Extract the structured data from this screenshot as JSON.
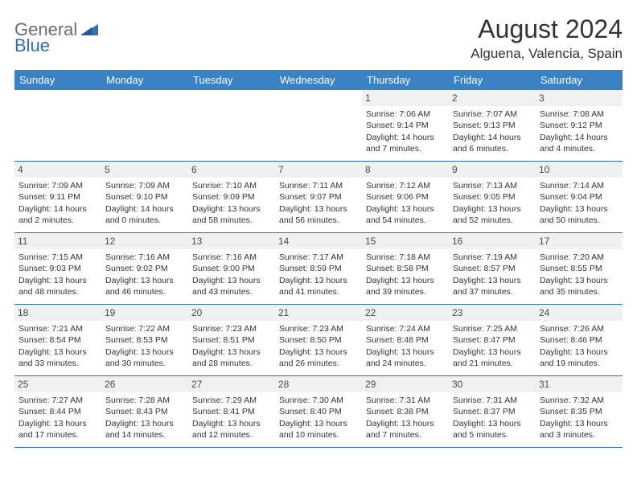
{
  "brand": {
    "part1": "General",
    "part2": "Blue"
  },
  "title": "August 2024",
  "location": "Alguena, Valencia, Spain",
  "colors": {
    "header_bg": "#3b82c4",
    "header_text": "#ffffff",
    "rule": "#2f6fb3",
    "daynum_bg": "#eef0f2",
    "text": "#333333",
    "logo_gray": "#6b6b6b",
    "logo_blue": "#2f6fb3"
  },
  "day_labels": [
    "Sunday",
    "Monday",
    "Tuesday",
    "Wednesday",
    "Thursday",
    "Friday",
    "Saturday"
  ],
  "weeks": [
    [
      {
        "n": "",
        "sr": "",
        "ss": "",
        "dl": ""
      },
      {
        "n": "",
        "sr": "",
        "ss": "",
        "dl": ""
      },
      {
        "n": "",
        "sr": "",
        "ss": "",
        "dl": ""
      },
      {
        "n": "",
        "sr": "",
        "ss": "",
        "dl": ""
      },
      {
        "n": "1",
        "sr": "7:06 AM",
        "ss": "9:14 PM",
        "dl": "14 hours and 7 minutes."
      },
      {
        "n": "2",
        "sr": "7:07 AM",
        "ss": "9:13 PM",
        "dl": "14 hours and 6 minutes."
      },
      {
        "n": "3",
        "sr": "7:08 AM",
        "ss": "9:12 PM",
        "dl": "14 hours and 4 minutes."
      }
    ],
    [
      {
        "n": "4",
        "sr": "7:09 AM",
        "ss": "9:11 PM",
        "dl": "14 hours and 2 minutes."
      },
      {
        "n": "5",
        "sr": "7:09 AM",
        "ss": "9:10 PM",
        "dl": "14 hours and 0 minutes."
      },
      {
        "n": "6",
        "sr": "7:10 AM",
        "ss": "9:09 PM",
        "dl": "13 hours and 58 minutes."
      },
      {
        "n": "7",
        "sr": "7:11 AM",
        "ss": "9:07 PM",
        "dl": "13 hours and 56 minutes."
      },
      {
        "n": "8",
        "sr": "7:12 AM",
        "ss": "9:06 PM",
        "dl": "13 hours and 54 minutes."
      },
      {
        "n": "9",
        "sr": "7:13 AM",
        "ss": "9:05 PM",
        "dl": "13 hours and 52 minutes."
      },
      {
        "n": "10",
        "sr": "7:14 AM",
        "ss": "9:04 PM",
        "dl": "13 hours and 50 minutes."
      }
    ],
    [
      {
        "n": "11",
        "sr": "7:15 AM",
        "ss": "9:03 PM",
        "dl": "13 hours and 48 minutes."
      },
      {
        "n": "12",
        "sr": "7:16 AM",
        "ss": "9:02 PM",
        "dl": "13 hours and 46 minutes."
      },
      {
        "n": "13",
        "sr": "7:16 AM",
        "ss": "9:00 PM",
        "dl": "13 hours and 43 minutes."
      },
      {
        "n": "14",
        "sr": "7:17 AM",
        "ss": "8:59 PM",
        "dl": "13 hours and 41 minutes."
      },
      {
        "n": "15",
        "sr": "7:18 AM",
        "ss": "8:58 PM",
        "dl": "13 hours and 39 minutes."
      },
      {
        "n": "16",
        "sr": "7:19 AM",
        "ss": "8:57 PM",
        "dl": "13 hours and 37 minutes."
      },
      {
        "n": "17",
        "sr": "7:20 AM",
        "ss": "8:55 PM",
        "dl": "13 hours and 35 minutes."
      }
    ],
    [
      {
        "n": "18",
        "sr": "7:21 AM",
        "ss": "8:54 PM",
        "dl": "13 hours and 33 minutes."
      },
      {
        "n": "19",
        "sr": "7:22 AM",
        "ss": "8:53 PM",
        "dl": "13 hours and 30 minutes."
      },
      {
        "n": "20",
        "sr": "7:23 AM",
        "ss": "8:51 PM",
        "dl": "13 hours and 28 minutes."
      },
      {
        "n": "21",
        "sr": "7:23 AM",
        "ss": "8:50 PM",
        "dl": "13 hours and 26 minutes."
      },
      {
        "n": "22",
        "sr": "7:24 AM",
        "ss": "8:48 PM",
        "dl": "13 hours and 24 minutes."
      },
      {
        "n": "23",
        "sr": "7:25 AM",
        "ss": "8:47 PM",
        "dl": "13 hours and 21 minutes."
      },
      {
        "n": "24",
        "sr": "7:26 AM",
        "ss": "8:46 PM",
        "dl": "13 hours and 19 minutes."
      }
    ],
    [
      {
        "n": "25",
        "sr": "7:27 AM",
        "ss": "8:44 PM",
        "dl": "13 hours and 17 minutes."
      },
      {
        "n": "26",
        "sr": "7:28 AM",
        "ss": "8:43 PM",
        "dl": "13 hours and 14 minutes."
      },
      {
        "n": "27",
        "sr": "7:29 AM",
        "ss": "8:41 PM",
        "dl": "13 hours and 12 minutes."
      },
      {
        "n": "28",
        "sr": "7:30 AM",
        "ss": "8:40 PM",
        "dl": "13 hours and 10 minutes."
      },
      {
        "n": "29",
        "sr": "7:31 AM",
        "ss": "8:38 PM",
        "dl": "13 hours and 7 minutes."
      },
      {
        "n": "30",
        "sr": "7:31 AM",
        "ss": "8:37 PM",
        "dl": "13 hours and 5 minutes."
      },
      {
        "n": "31",
        "sr": "7:32 AM",
        "ss": "8:35 PM",
        "dl": "13 hours and 3 minutes."
      }
    ]
  ],
  "labels": {
    "sunrise_prefix": "Sunrise: ",
    "sunset_prefix": "Sunset: ",
    "daylight_prefix": "Daylight: "
  }
}
